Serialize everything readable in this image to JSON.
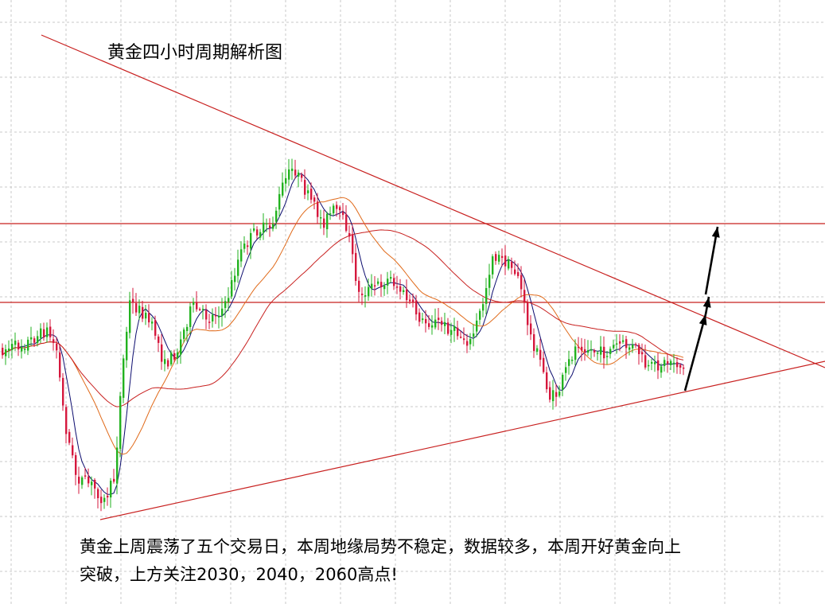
{
  "chart_data": {
    "type": "candlestick",
    "title": "黄金四小时周期解析图",
    "annotation": [
      "黄金上周震荡了五个交易日，本周地缘局势不稳定，数据较多，本周开好黄金向上",
      "突破，上方关注2030，2040，2060高点!"
    ],
    "grid": true,
    "colors": {
      "up_candle": "#22b21f",
      "down_candle": "#d5183d",
      "ma_fast": "#0b0b6e",
      "ma_mid": "#e06a1a",
      "ma_slow": "#c8201f",
      "trendline": "#c8201f",
      "level_line": "#c8201f",
      "forecast_arrow": "#000000"
    },
    "price_levels_shown": 2,
    "trendlines_shown": 2,
    "forecast_arrows_shown": 2
  }
}
